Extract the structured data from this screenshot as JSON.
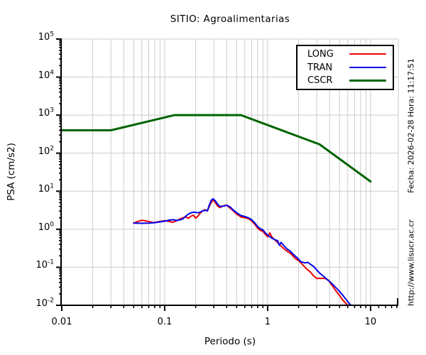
{
  "window": {
    "title": "SITIO: Agroalimentarias"
  },
  "side_texts": {
    "datetime": "Fecha: 2026-02-28 Hora: 11:17:51",
    "url": "http://www.lisucr.ac.cr"
  },
  "legend": {
    "items": [
      {
        "label": "LONG",
        "color": "#ee0000",
        "thickness": 2
      },
      {
        "label": "TRAN",
        "color": "#0000ee",
        "thickness": 2
      },
      {
        "label": "CSCR",
        "color": "#006400",
        "thickness": 3
      }
    ]
  },
  "chart_data": {
    "type": "line",
    "title": "SITIO: Agroalimentarias",
    "xlabel": "Periodo (s)",
    "ylabel": "PSA (cm/s2)",
    "x_scale": "log",
    "y_scale": "log",
    "xlim": [
      0.01,
      18.6
    ],
    "ylim": [
      0.01,
      100000
    ],
    "grid": true,
    "legend_position": "top-right",
    "colors": {
      "grid": "#cccccc",
      "axis": "#000000",
      "background": "#ffffff"
    },
    "x_ticks": {
      "values": [
        0.01,
        0.1,
        1,
        10
      ],
      "labels": [
        "0.01",
        "0.1",
        "1",
        "10"
      ],
      "minor_extra": [
        12,
        14,
        16,
        18
      ]
    },
    "y_ticks": {
      "exponents": [
        5,
        4,
        3,
        2,
        1,
        0,
        -1,
        -2
      ]
    },
    "series": [
      {
        "name": "LONG",
        "color": "#ee0000",
        "width": 2,
        "points": [
          [
            0.05,
            1.45
          ],
          [
            0.055,
            1.6
          ],
          [
            0.06,
            1.72
          ],
          [
            0.065,
            1.66
          ],
          [
            0.07,
            1.58
          ],
          [
            0.075,
            1.52
          ],
          [
            0.08,
            1.5
          ],
          [
            0.09,
            1.6
          ],
          [
            0.1,
            1.68
          ],
          [
            0.11,
            1.6
          ],
          [
            0.12,
            1.52
          ],
          [
            0.13,
            1.66
          ],
          [
            0.14,
            1.85
          ],
          [
            0.15,
            2.0
          ],
          [
            0.16,
            2.1
          ],
          [
            0.17,
            1.95
          ],
          [
            0.18,
            2.2
          ],
          [
            0.19,
            2.35
          ],
          [
            0.2,
            1.95
          ],
          [
            0.21,
            2.2
          ],
          [
            0.22,
            2.6
          ],
          [
            0.235,
            3.1
          ],
          [
            0.25,
            3.25
          ],
          [
            0.26,
            3.0
          ],
          [
            0.27,
            3.9
          ],
          [
            0.285,
            5.2
          ],
          [
            0.3,
            5.9
          ],
          [
            0.315,
            4.7
          ],
          [
            0.33,
            3.95
          ],
          [
            0.345,
            3.7
          ],
          [
            0.37,
            4.1
          ],
          [
            0.4,
            4.3
          ],
          [
            0.43,
            3.6
          ],
          [
            0.46,
            3.1
          ],
          [
            0.5,
            2.5
          ],
          [
            0.55,
            2.1
          ],
          [
            0.6,
            2.0
          ],
          [
            0.65,
            1.9
          ],
          [
            0.7,
            1.65
          ],
          [
            0.75,
            1.35
          ],
          [
            0.8,
            1.07
          ],
          [
            0.85,
            0.93
          ],
          [
            0.9,
            0.88
          ],
          [
            0.95,
            0.73
          ],
          [
            1.0,
            0.63
          ],
          [
            1.05,
            0.8
          ],
          [
            1.1,
            0.62
          ],
          [
            1.2,
            0.5
          ],
          [
            1.3,
            0.4
          ],
          [
            1.4,
            0.33
          ],
          [
            1.5,
            0.28
          ],
          [
            1.6,
            0.25
          ],
          [
            1.7,
            0.22
          ],
          [
            1.8,
            0.185
          ],
          [
            1.9,
            0.163
          ],
          [
            2.0,
            0.15
          ],
          [
            2.2,
            0.115
          ],
          [
            2.4,
            0.09
          ],
          [
            2.6,
            0.075
          ],
          [
            2.8,
            0.059
          ],
          [
            3.0,
            0.051
          ],
          [
            3.3,
            0.051
          ],
          [
            3.6,
            0.051
          ],
          [
            3.9,
            0.046
          ],
          [
            4.2,
            0.034
          ],
          [
            4.6,
            0.024
          ],
          [
            5.0,
            0.018
          ],
          [
            5.4,
            0.0135
          ],
          [
            5.9,
            0.0105
          ],
          [
            6.2,
            0.009
          ]
        ]
      },
      {
        "name": "TRAN",
        "color": "#0000ee",
        "width": 2,
        "points": [
          [
            0.05,
            1.45
          ],
          [
            0.06,
            1.43
          ],
          [
            0.07,
            1.45
          ],
          [
            0.08,
            1.49
          ],
          [
            0.09,
            1.56
          ],
          [
            0.1,
            1.63
          ],
          [
            0.11,
            1.73
          ],
          [
            0.12,
            1.78
          ],
          [
            0.13,
            1.7
          ],
          [
            0.14,
            1.76
          ],
          [
            0.15,
            1.86
          ],
          [
            0.16,
            2.2
          ],
          [
            0.17,
            2.5
          ],
          [
            0.18,
            2.7
          ],
          [
            0.19,
            2.8
          ],
          [
            0.2,
            2.76
          ],
          [
            0.21,
            2.7
          ],
          [
            0.22,
            2.8
          ],
          [
            0.235,
            3.05
          ],
          [
            0.25,
            3.15
          ],
          [
            0.26,
            3.05
          ],
          [
            0.27,
            4.2
          ],
          [
            0.285,
            5.9
          ],
          [
            0.295,
            6.3
          ],
          [
            0.31,
            5.6
          ],
          [
            0.33,
            4.4
          ],
          [
            0.345,
            3.95
          ],
          [
            0.37,
            4.05
          ],
          [
            0.4,
            4.25
          ],
          [
            0.43,
            3.9
          ],
          [
            0.46,
            3.25
          ],
          [
            0.5,
            2.7
          ],
          [
            0.55,
            2.3
          ],
          [
            0.6,
            2.15
          ],
          [
            0.65,
            2.0
          ],
          [
            0.7,
            1.78
          ],
          [
            0.75,
            1.47
          ],
          [
            0.8,
            1.17
          ],
          [
            0.85,
            1.03
          ],
          [
            0.9,
            0.96
          ],
          [
            0.95,
            0.8
          ],
          [
            1.0,
            0.7
          ],
          [
            1.1,
            0.58
          ],
          [
            1.2,
            0.52
          ],
          [
            1.25,
            0.5
          ],
          [
            1.3,
            0.38
          ],
          [
            1.35,
            0.45
          ],
          [
            1.45,
            0.36
          ],
          [
            1.55,
            0.3
          ],
          [
            1.65,
            0.27
          ],
          [
            1.8,
            0.21
          ],
          [
            1.95,
            0.175
          ],
          [
            2.1,
            0.14
          ],
          [
            2.3,
            0.13
          ],
          [
            2.45,
            0.135
          ],
          [
            2.6,
            0.12
          ],
          [
            2.8,
            0.105
          ],
          [
            3.0,
            0.085
          ],
          [
            3.2,
            0.07
          ],
          [
            3.5,
            0.058
          ],
          [
            3.8,
            0.047
          ],
          [
            4.1,
            0.04
          ],
          [
            4.5,
            0.031
          ],
          [
            5.0,
            0.023
          ],
          [
            5.5,
            0.017
          ],
          [
            6.0,
            0.0125
          ],
          [
            6.4,
            0.0102
          ],
          [
            6.6,
            0.0092
          ]
        ]
      },
      {
        "name": "CSCR",
        "color": "#006400",
        "width": 3,
        "points": [
          [
            0.01,
            400
          ],
          [
            0.03,
            400
          ],
          [
            0.125,
            1000
          ],
          [
            0.55,
            1000
          ],
          [
            3.2,
            170
          ],
          [
            10,
            18
          ]
        ]
      }
    ]
  }
}
